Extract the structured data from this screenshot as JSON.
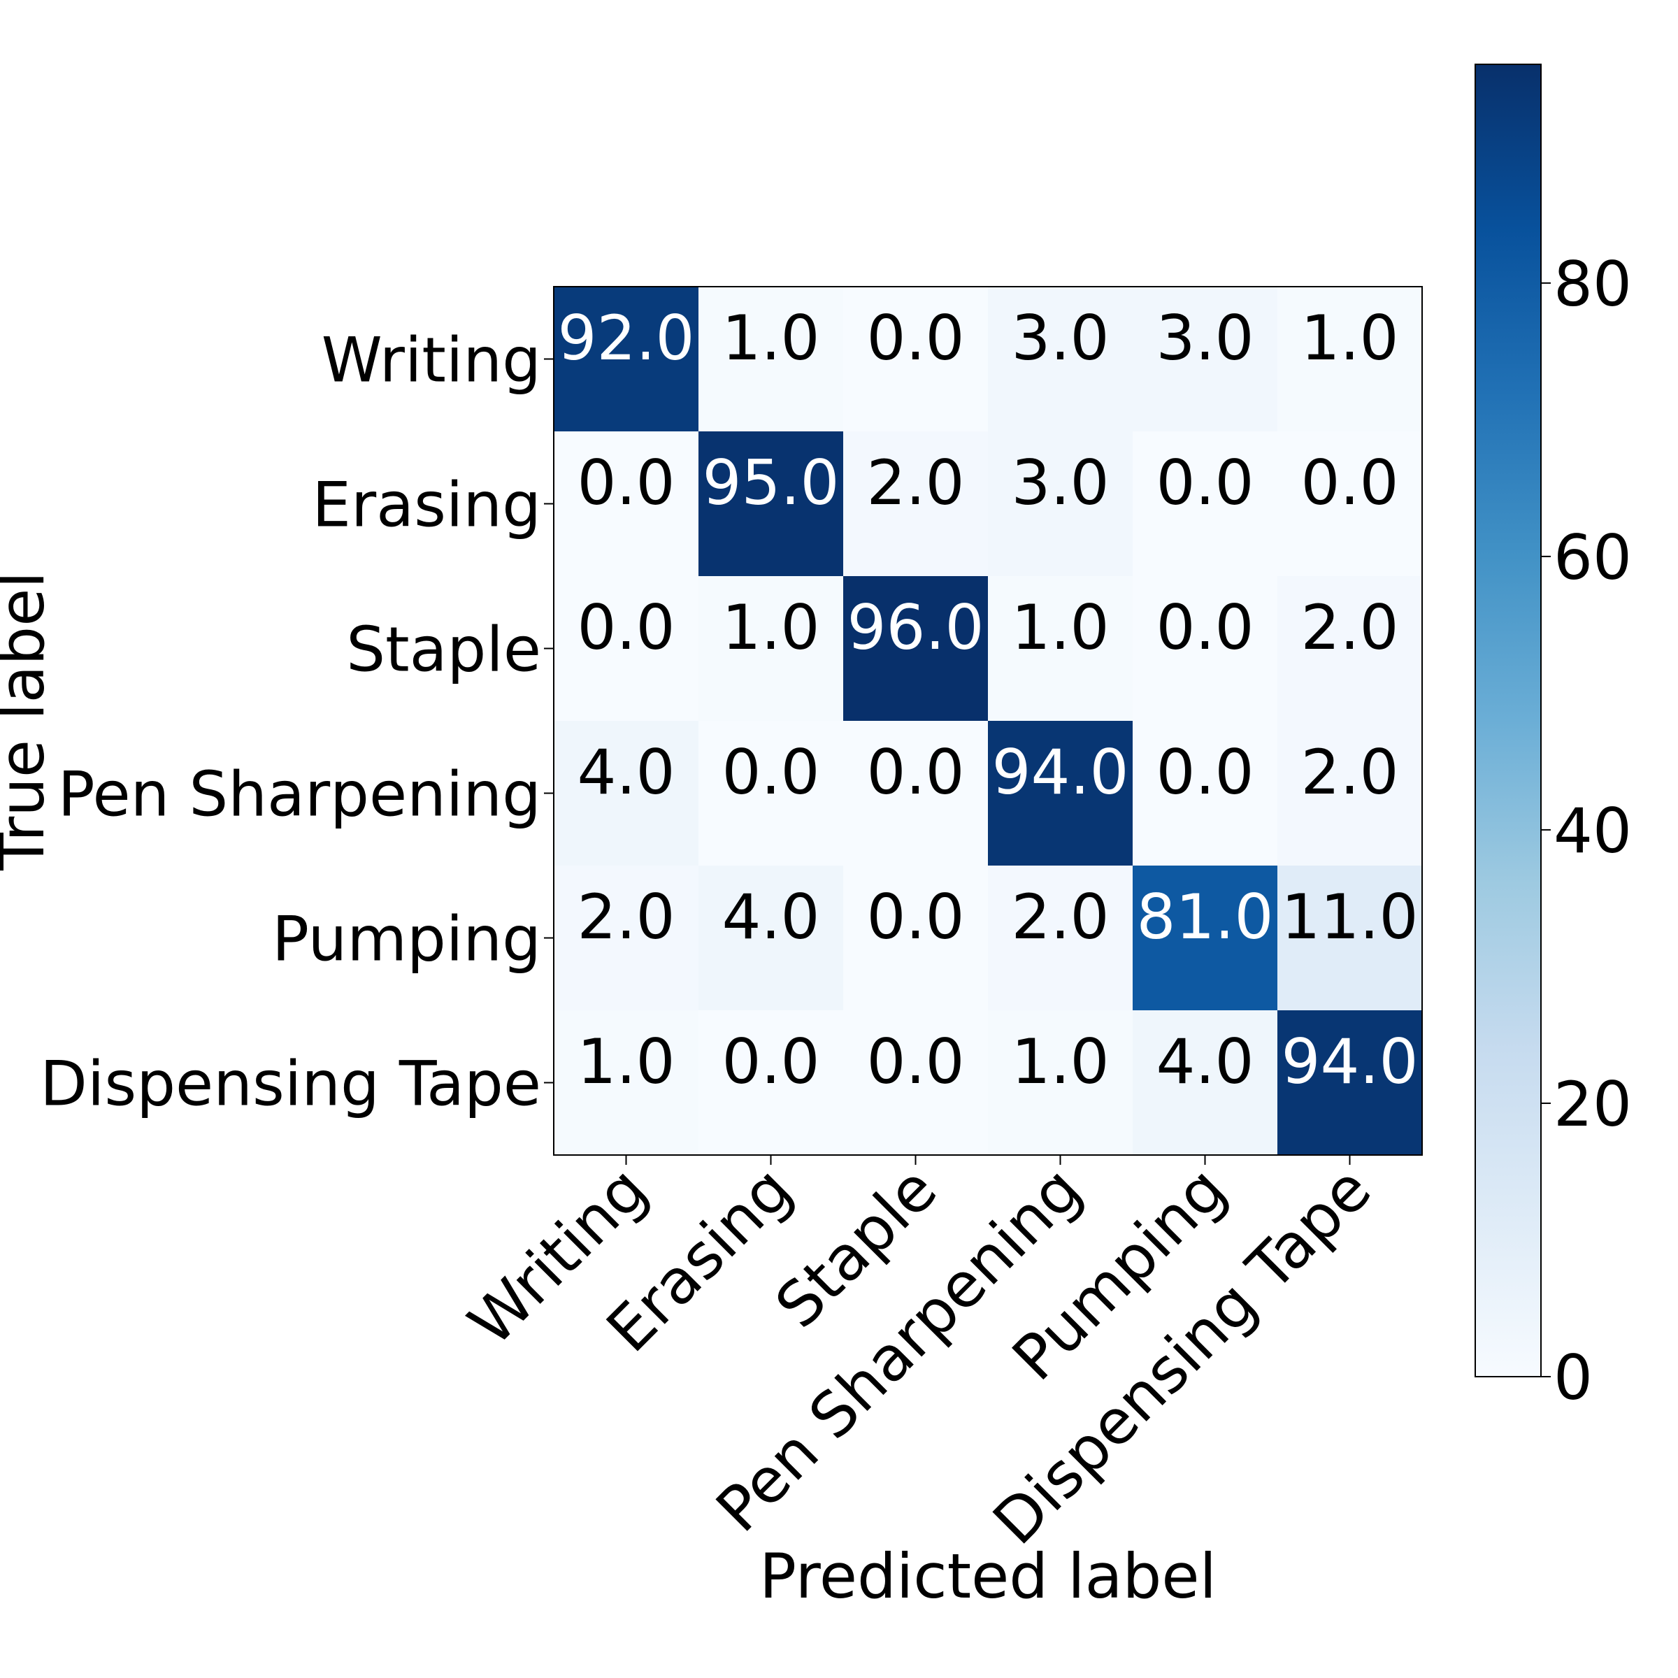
{
  "chart_data": {
    "type": "heatmap",
    "xlabel": "Predicted label",
    "ylabel": "True label",
    "x_categories": [
      "Writing",
      "Erasing",
      "Staple",
      "Pen Sharpening",
      "Pumping",
      "Dispensing Tape"
    ],
    "y_categories": [
      "Writing",
      "Erasing",
      "Staple",
      "Pen Sharpening",
      "Pumping",
      "Dispensing Tape"
    ],
    "values": [
      [
        92.0,
        1.0,
        0.0,
        3.0,
        3.0,
        1.0
      ],
      [
        0.0,
        95.0,
        2.0,
        3.0,
        0.0,
        0.0
      ],
      [
        0.0,
        1.0,
        96.0,
        1.0,
        0.0,
        2.0
      ],
      [
        4.0,
        0.0,
        0.0,
        94.0,
        0.0,
        2.0
      ],
      [
        2.0,
        4.0,
        0.0,
        2.0,
        81.0,
        11.0
      ],
      [
        1.0,
        0.0,
        0.0,
        1.0,
        4.0,
        94.0
      ]
    ],
    "value_labels": [
      [
        "92.0",
        "1.0",
        "0.0",
        "3.0",
        "3.0",
        "1.0"
      ],
      [
        "0.0",
        "95.0",
        "2.0",
        "3.0",
        "0.0",
        "0.0"
      ],
      [
        "0.0",
        "1.0",
        "96.0",
        "1.0",
        "0.0",
        "2.0"
      ],
      [
        "4.0",
        "0.0",
        "0.0",
        "94.0",
        "0.0",
        "2.0"
      ],
      [
        "2.0",
        "4.0",
        "0.0",
        "2.0",
        "81.0",
        "11.0"
      ],
      [
        "1.0",
        "0.0",
        "0.0",
        "1.0",
        "4.0",
        "94.0"
      ]
    ],
    "colormap": "Blues",
    "colorbar": {
      "range": [
        0,
        96
      ],
      "ticks": [
        0,
        20,
        40,
        60,
        80
      ],
      "tick_labels": [
        "0",
        "20",
        "40",
        "60",
        "80"
      ]
    },
    "grid": false
  }
}
